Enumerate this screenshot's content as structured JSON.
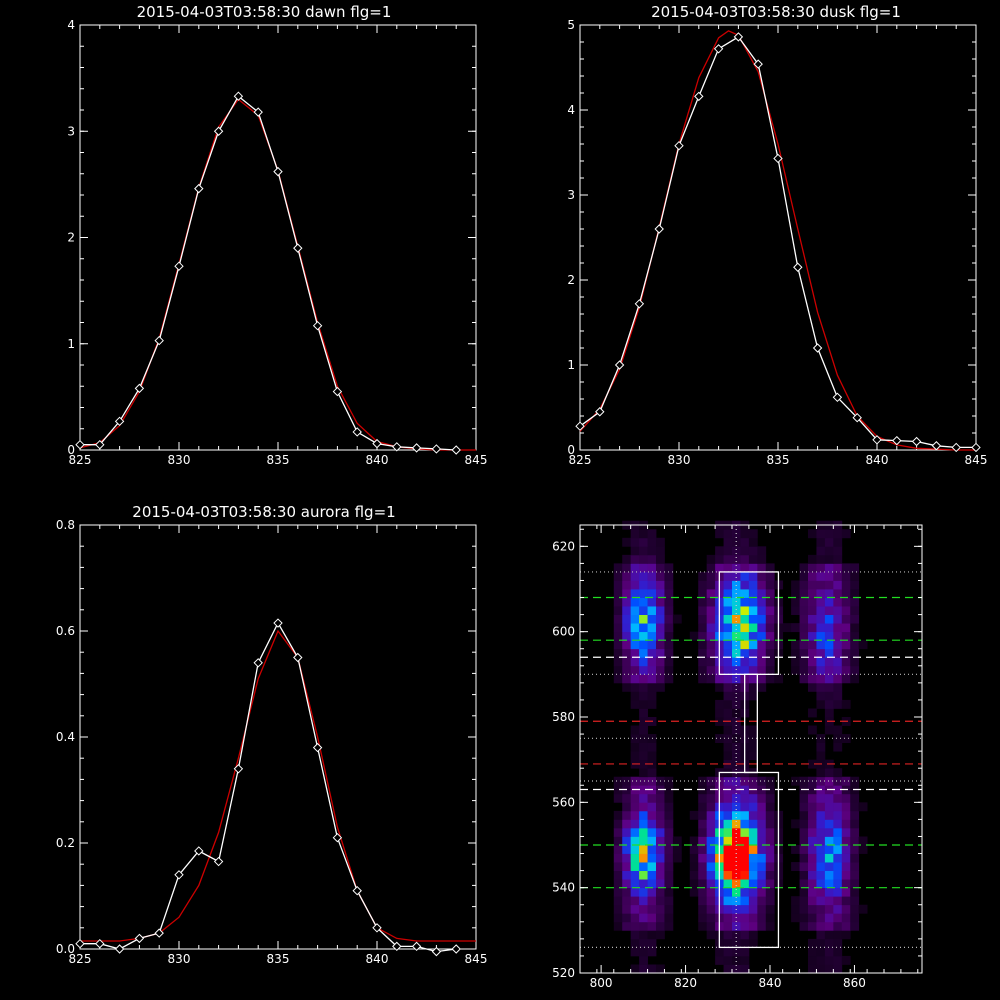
{
  "chart_data": [
    {
      "type": "line",
      "title": "2015-04-03T03:58:30 dawn flg=1",
      "xlim": [
        825,
        845
      ],
      "ylim": [
        0,
        4
      ],
      "xticks": [
        825,
        830,
        835,
        840,
        845
      ],
      "yticks": [
        0,
        1,
        2,
        3,
        4
      ],
      "series": [
        {
          "color": "#ffffff",
          "markers": "diamond",
          "x": [
            825,
            826,
            827,
            828,
            829,
            830,
            831,
            832,
            833,
            834,
            835,
            836,
            837,
            838,
            839,
            840,
            841,
            842,
            843,
            844
          ],
          "values": [
            0.05,
            0.05,
            0.27,
            0.58,
            1.03,
            1.73,
            2.46,
            3.0,
            3.33,
            3.18,
            2.62,
            1.9,
            1.17,
            0.55,
            0.17,
            0.06,
            0.03,
            0.02,
            0.01,
            0.0
          ]
        },
        {
          "color": "#cc0000",
          "markers": "none",
          "x": [
            825,
            826,
            827,
            828,
            829,
            830,
            831,
            832,
            833,
            834,
            835,
            836,
            837,
            838,
            839,
            840,
            841,
            842,
            843,
            844,
            845
          ],
          "values": [
            0.02,
            0.07,
            0.23,
            0.55,
            1.05,
            1.75,
            2.47,
            3.04,
            3.3,
            3.15,
            2.63,
            1.92,
            1.2,
            0.6,
            0.25,
            0.08,
            0.03,
            0.01,
            0.0,
            0.0,
            0.0
          ]
        }
      ]
    },
    {
      "type": "line",
      "title": "2015-04-03T03:58:30 dusk flg=1",
      "xlim": [
        825,
        845
      ],
      "ylim": [
        0,
        5
      ],
      "xticks": [
        825,
        830,
        835,
        840,
        845
      ],
      "yticks": [
        0,
        1,
        2,
        3,
        4,
        5
      ],
      "series": [
        {
          "color": "#ffffff",
          "markers": "diamond",
          "x": [
            825,
            826,
            827,
            828,
            829,
            830,
            831,
            832,
            833,
            834,
            835,
            836,
            837,
            838,
            839,
            840,
            841,
            842,
            843,
            844,
            845
          ],
          "values": [
            0.28,
            0.45,
            1.0,
            1.72,
            2.6,
            3.58,
            4.16,
            4.72,
            4.86,
            4.54,
            3.43,
            2.15,
            1.2,
            0.62,
            0.38,
            0.12,
            0.11,
            0.1,
            0.05,
            0.03,
            0.03
          ]
        },
        {
          "color": "#cc0000",
          "markers": "none",
          "x": [
            825,
            826,
            827,
            828,
            829,
            830,
            831,
            832,
            832.5,
            833,
            834,
            835,
            836,
            837,
            838,
            839,
            840,
            841,
            842,
            843,
            844,
            845
          ],
          "values": [
            0.22,
            0.48,
            0.95,
            1.68,
            2.62,
            3.6,
            4.38,
            4.85,
            4.93,
            4.88,
            4.45,
            3.6,
            2.6,
            1.62,
            0.88,
            0.4,
            0.16,
            0.06,
            0.02,
            0.01,
            0.0,
            0.0
          ]
        }
      ]
    },
    {
      "type": "line",
      "title": "2015-04-03T03:58:30 aurora flg=1",
      "xlim": [
        825,
        845
      ],
      "ylim": [
        0,
        0.8
      ],
      "xticks": [
        825,
        830,
        835,
        840,
        845
      ],
      "yticks": [
        "0.0",
        "0.2",
        "0.4",
        "0.6",
        "0.8"
      ],
      "series": [
        {
          "color": "#ffffff",
          "markers": "diamond",
          "x": [
            825,
            826,
            827,
            828,
            829,
            830,
            831,
            832,
            833,
            834,
            835,
            836,
            837,
            838,
            839,
            840,
            841,
            842,
            843,
            844
          ],
          "values": [
            0.01,
            0.01,
            0.0,
            0.02,
            0.03,
            0.14,
            0.185,
            0.165,
            0.34,
            0.54,
            0.615,
            0.55,
            0.38,
            0.21,
            0.11,
            0.04,
            0.005,
            0.005,
            -0.005,
            0.0
          ]
        },
        {
          "color": "#cc0000",
          "markers": "none",
          "x": [
            825,
            826,
            827,
            828,
            829,
            830,
            831,
            832,
            833,
            834,
            835,
            836,
            837,
            838,
            839,
            840,
            841,
            842,
            843,
            844,
            845
          ],
          "values": [
            0.015,
            0.015,
            0.015,
            0.02,
            0.03,
            0.06,
            0.12,
            0.22,
            0.36,
            0.51,
            0.6,
            0.55,
            0.4,
            0.23,
            0.11,
            0.04,
            0.02,
            0.015,
            0.015,
            0.015,
            0.015
          ]
        }
      ]
    },
    {
      "type": "heatmap",
      "title": "",
      "xlim": [
        795,
        876
      ],
      "ylim": [
        520,
        625
      ],
      "xticks": [
        800,
        820,
        840,
        860
      ],
      "yticks": [
        520,
        540,
        560,
        580,
        600,
        620
      ],
      "columns": [
        {
          "center": 810,
          "width": 6
        },
        {
          "center": 832,
          "width": 8
        },
        {
          "center": 854,
          "width": 7
        }
      ],
      "hotspots": [
        {
          "x": 810,
          "y": 548,
          "sx": 3,
          "sy": 6,
          "amp": 0.6
        },
        {
          "x": 810,
          "y": 603,
          "sx": 3,
          "sy": 7,
          "amp": 0.45
        },
        {
          "x": 832,
          "y": 548,
          "sx": 4,
          "sy": 7,
          "amp": 1.0
        },
        {
          "x": 833,
          "y": 602,
          "sx": 4,
          "sy": 7,
          "amp": 0.65
        },
        {
          "x": 854,
          "y": 548,
          "sx": 3,
          "sy": 7,
          "amp": 0.35
        },
        {
          "x": 853,
          "y": 600,
          "sx": 3,
          "sy": 7,
          "amp": 0.22
        }
      ],
      "boxes": [
        {
          "x0": 828,
          "x1": 842,
          "y0": 590,
          "y1": 614
        },
        {
          "x0": 828,
          "x1": 842,
          "y0": 526,
          "y1": 567
        },
        {
          "x0": 834,
          "x1": 837,
          "y0": 567,
          "y1": 590
        }
      ],
      "vline_x": 832,
      "hlines": [
        {
          "y": 614,
          "color": "#bbbbbb",
          "style": "dotted"
        },
        {
          "y": 608,
          "color": "#22dd22",
          "style": "dashed"
        },
        {
          "y": 598,
          "color": "#22dd22",
          "style": "dashed"
        },
        {
          "y": 594,
          "color": "#ffffff",
          "style": "dashed"
        },
        {
          "y": 590,
          "color": "#bbbbbb",
          "style": "dotted"
        },
        {
          "y": 579,
          "color": "#dd2222",
          "style": "dashed"
        },
        {
          "y": 575,
          "color": "#bbbbbb",
          "style": "dotted"
        },
        {
          "y": 569,
          "color": "#dd2222",
          "style": "dashed"
        },
        {
          "y": 565,
          "color": "#bbbbbb",
          "style": "dotted"
        },
        {
          "y": 563,
          "color": "#ffffff",
          "style": "dashed"
        },
        {
          "y": 550,
          "color": "#22dd22",
          "style": "dashed"
        },
        {
          "y": 540,
          "color": "#22dd22",
          "style": "dashed"
        },
        {
          "y": 526,
          "color": "#bbbbbb",
          "style": "dotted"
        }
      ]
    }
  ]
}
